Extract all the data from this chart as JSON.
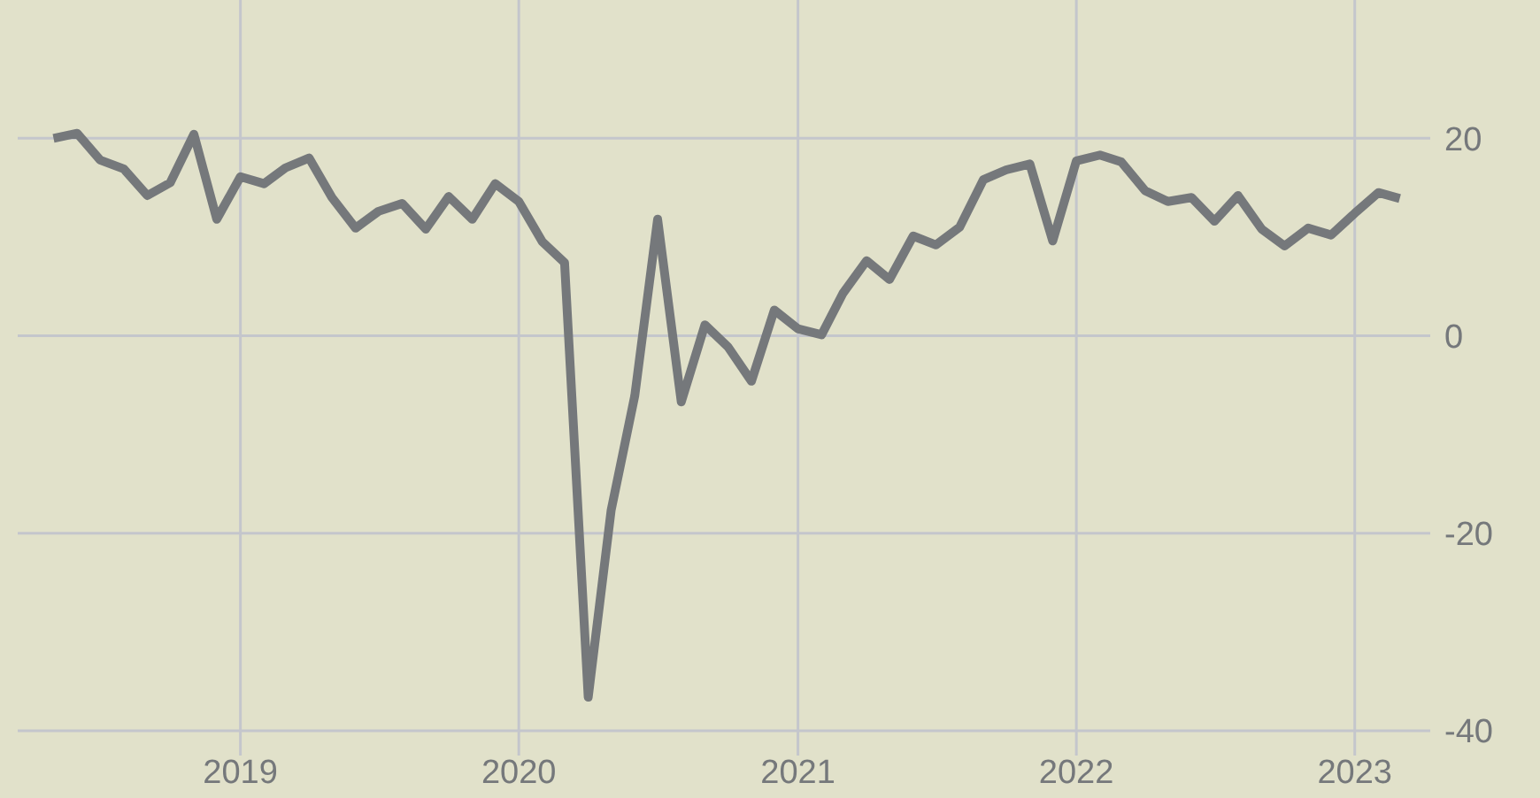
{
  "chart_data": {
    "type": "line",
    "x": [
      "2018-05",
      "2018-06",
      "2018-07",
      "2018-08",
      "2018-09",
      "2018-10",
      "2018-11",
      "2018-12",
      "2019-01",
      "2019-02",
      "2019-03",
      "2019-04",
      "2019-05",
      "2019-06",
      "2019-07",
      "2019-08",
      "2019-09",
      "2019-10",
      "2019-11",
      "2019-12",
      "2020-01",
      "2020-02",
      "2020-03",
      "2020-04",
      "2020-05",
      "2020-06",
      "2020-07",
      "2020-08",
      "2020-09",
      "2020-10",
      "2020-11",
      "2020-12",
      "2021-01",
      "2021-02",
      "2021-03",
      "2021-04",
      "2021-05",
      "2021-06",
      "2021-07",
      "2021-08",
      "2021-09",
      "2021-10",
      "2021-11",
      "2021-12",
      "2022-01",
      "2022-02",
      "2022-03",
      "2022-04",
      "2022-05",
      "2022-06",
      "2022-07",
      "2022-08",
      "2022-09",
      "2022-10",
      "2022-11",
      "2022-12",
      "2023-01",
      "2023-02",
      "2023-03"
    ],
    "series": [
      {
        "color": "#75787b",
        "values": [
          20.0,
          20.5,
          17.8,
          16.9,
          14.2,
          15.5,
          20.4,
          11.8,
          16.1,
          15.4,
          17.0,
          18.0,
          14.0,
          10.9,
          12.6,
          13.4,
          10.8,
          14.1,
          11.8,
          15.4,
          13.6,
          9.5,
          7.4,
          -36.6,
          -17.7,
          -6.1,
          11.8,
          -6.7,
          1.1,
          -1.1,
          -4.6,
          2.6,
          0.7,
          0.1,
          4.3,
          7.6,
          5.7,
          10.1,
          9.2,
          11.0,
          15.8,
          16.8,
          17.4,
          9.6,
          17.7,
          18.3,
          17.6,
          14.7,
          13.6,
          14.0,
          11.6,
          14.2,
          10.8,
          9.1,
          10.9,
          10.2,
          12.4,
          14.5,
          13.9
        ]
      }
    ],
    "xlim": [
      "2018-03-15",
      "2023-04-10"
    ],
    "xticks": [
      "2019",
      "2020",
      "2021",
      "2022",
      "2023"
    ],
    "ylim": [
      -40,
      34
    ],
    "yticks": [
      -40,
      -20,
      0,
      20
    ],
    "grid": true,
    "marker": "none",
    "line_style": "solid"
  }
}
